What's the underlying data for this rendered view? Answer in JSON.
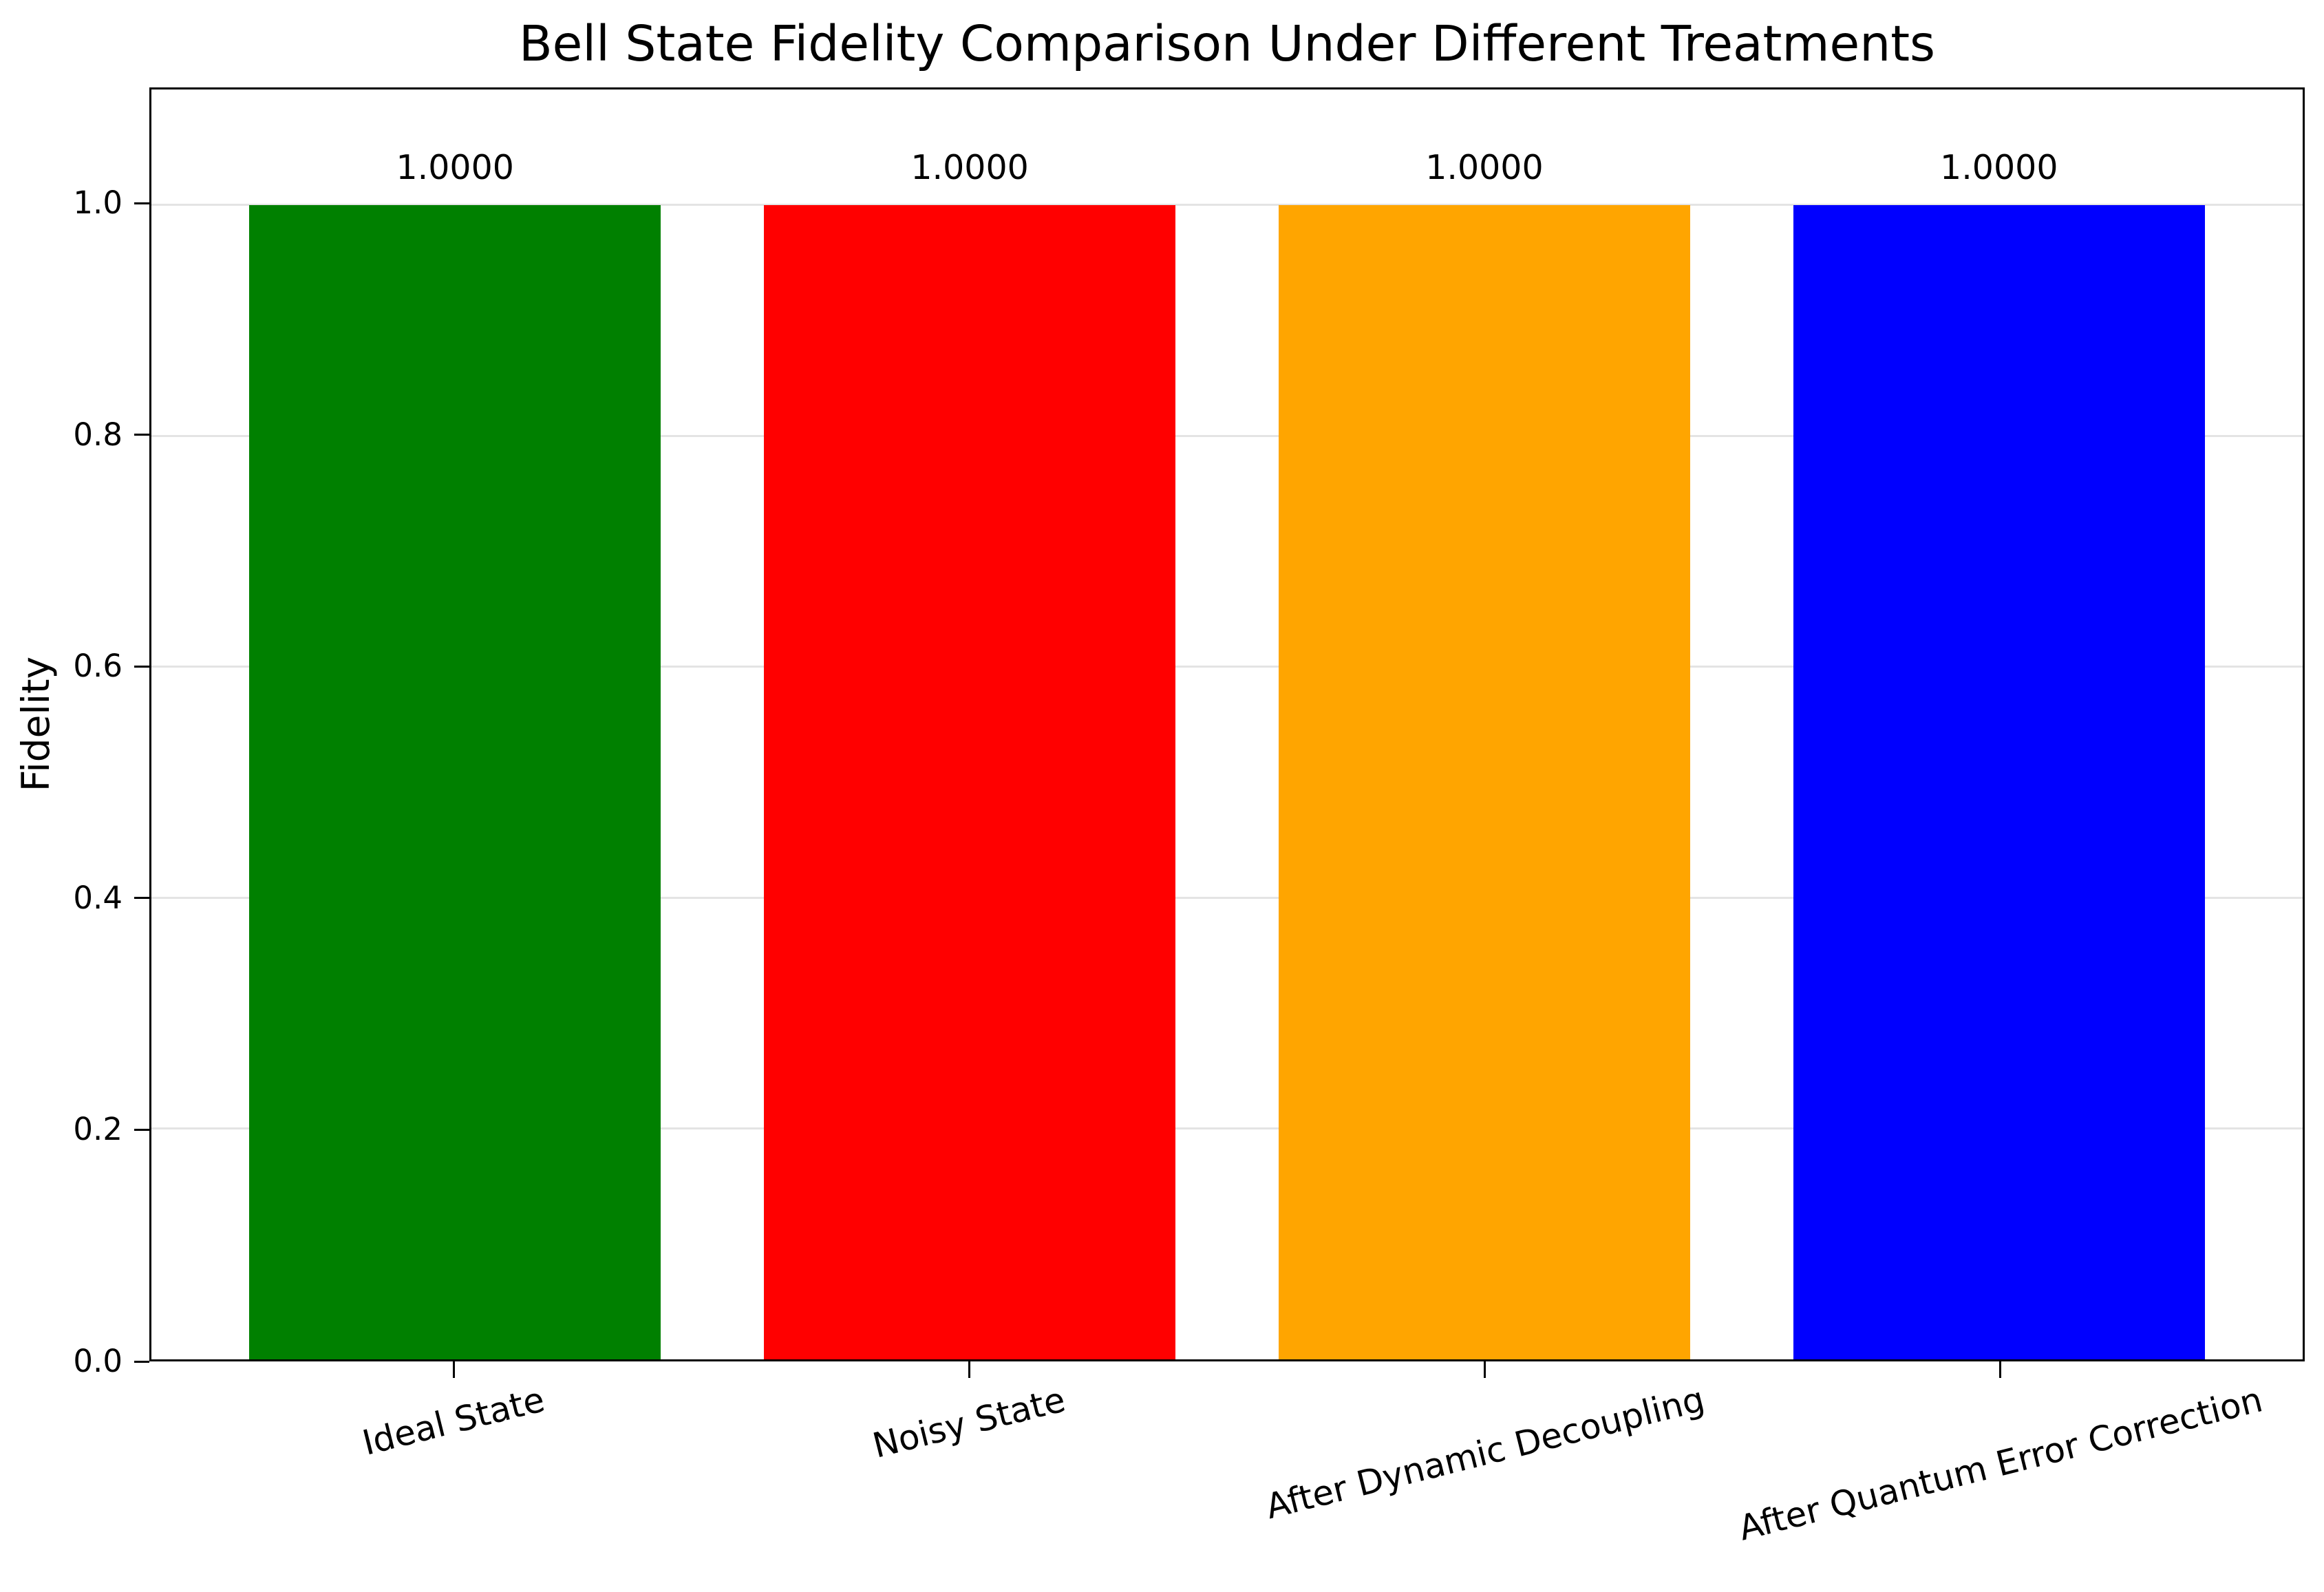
{
  "chart_data": {
    "type": "bar",
    "title": "Bell State Fidelity Comparison Under Different Treatments",
    "ylabel": "Fidelity",
    "xlabel": "",
    "categories": [
      "Ideal State",
      "Noisy State",
      "After Dynamic Decoupling",
      "After Quantum Error Correction"
    ],
    "values": [
      1.0,
      1.0,
      1.0,
      1.0
    ],
    "bar_value_labels": [
      "1.0000",
      "1.0000",
      "1.0000",
      "1.0000"
    ],
    "bar_colors": [
      "#008000",
      "#ff0000",
      "#ffa500",
      "#0000ff"
    ],
    "ytick_labels": [
      "0.0",
      "0.2",
      "0.4",
      "0.6",
      "0.8",
      "1.0"
    ],
    "ytick_values": [
      0.0,
      0.2,
      0.4,
      0.6,
      0.8,
      1.0
    ],
    "ylim": [
      0,
      1.1
    ],
    "grid": "horizontal",
    "gridline_color": "#e4e4e4",
    "axis_color": "#000000",
    "background_color": "#ffffff",
    "bar_width_fraction": 0.8,
    "x_axis_units_span": 4.18,
    "x_first_center_offset": 0.59,
    "xtick_label_rotation_deg": 14,
    "legend": "none"
  }
}
